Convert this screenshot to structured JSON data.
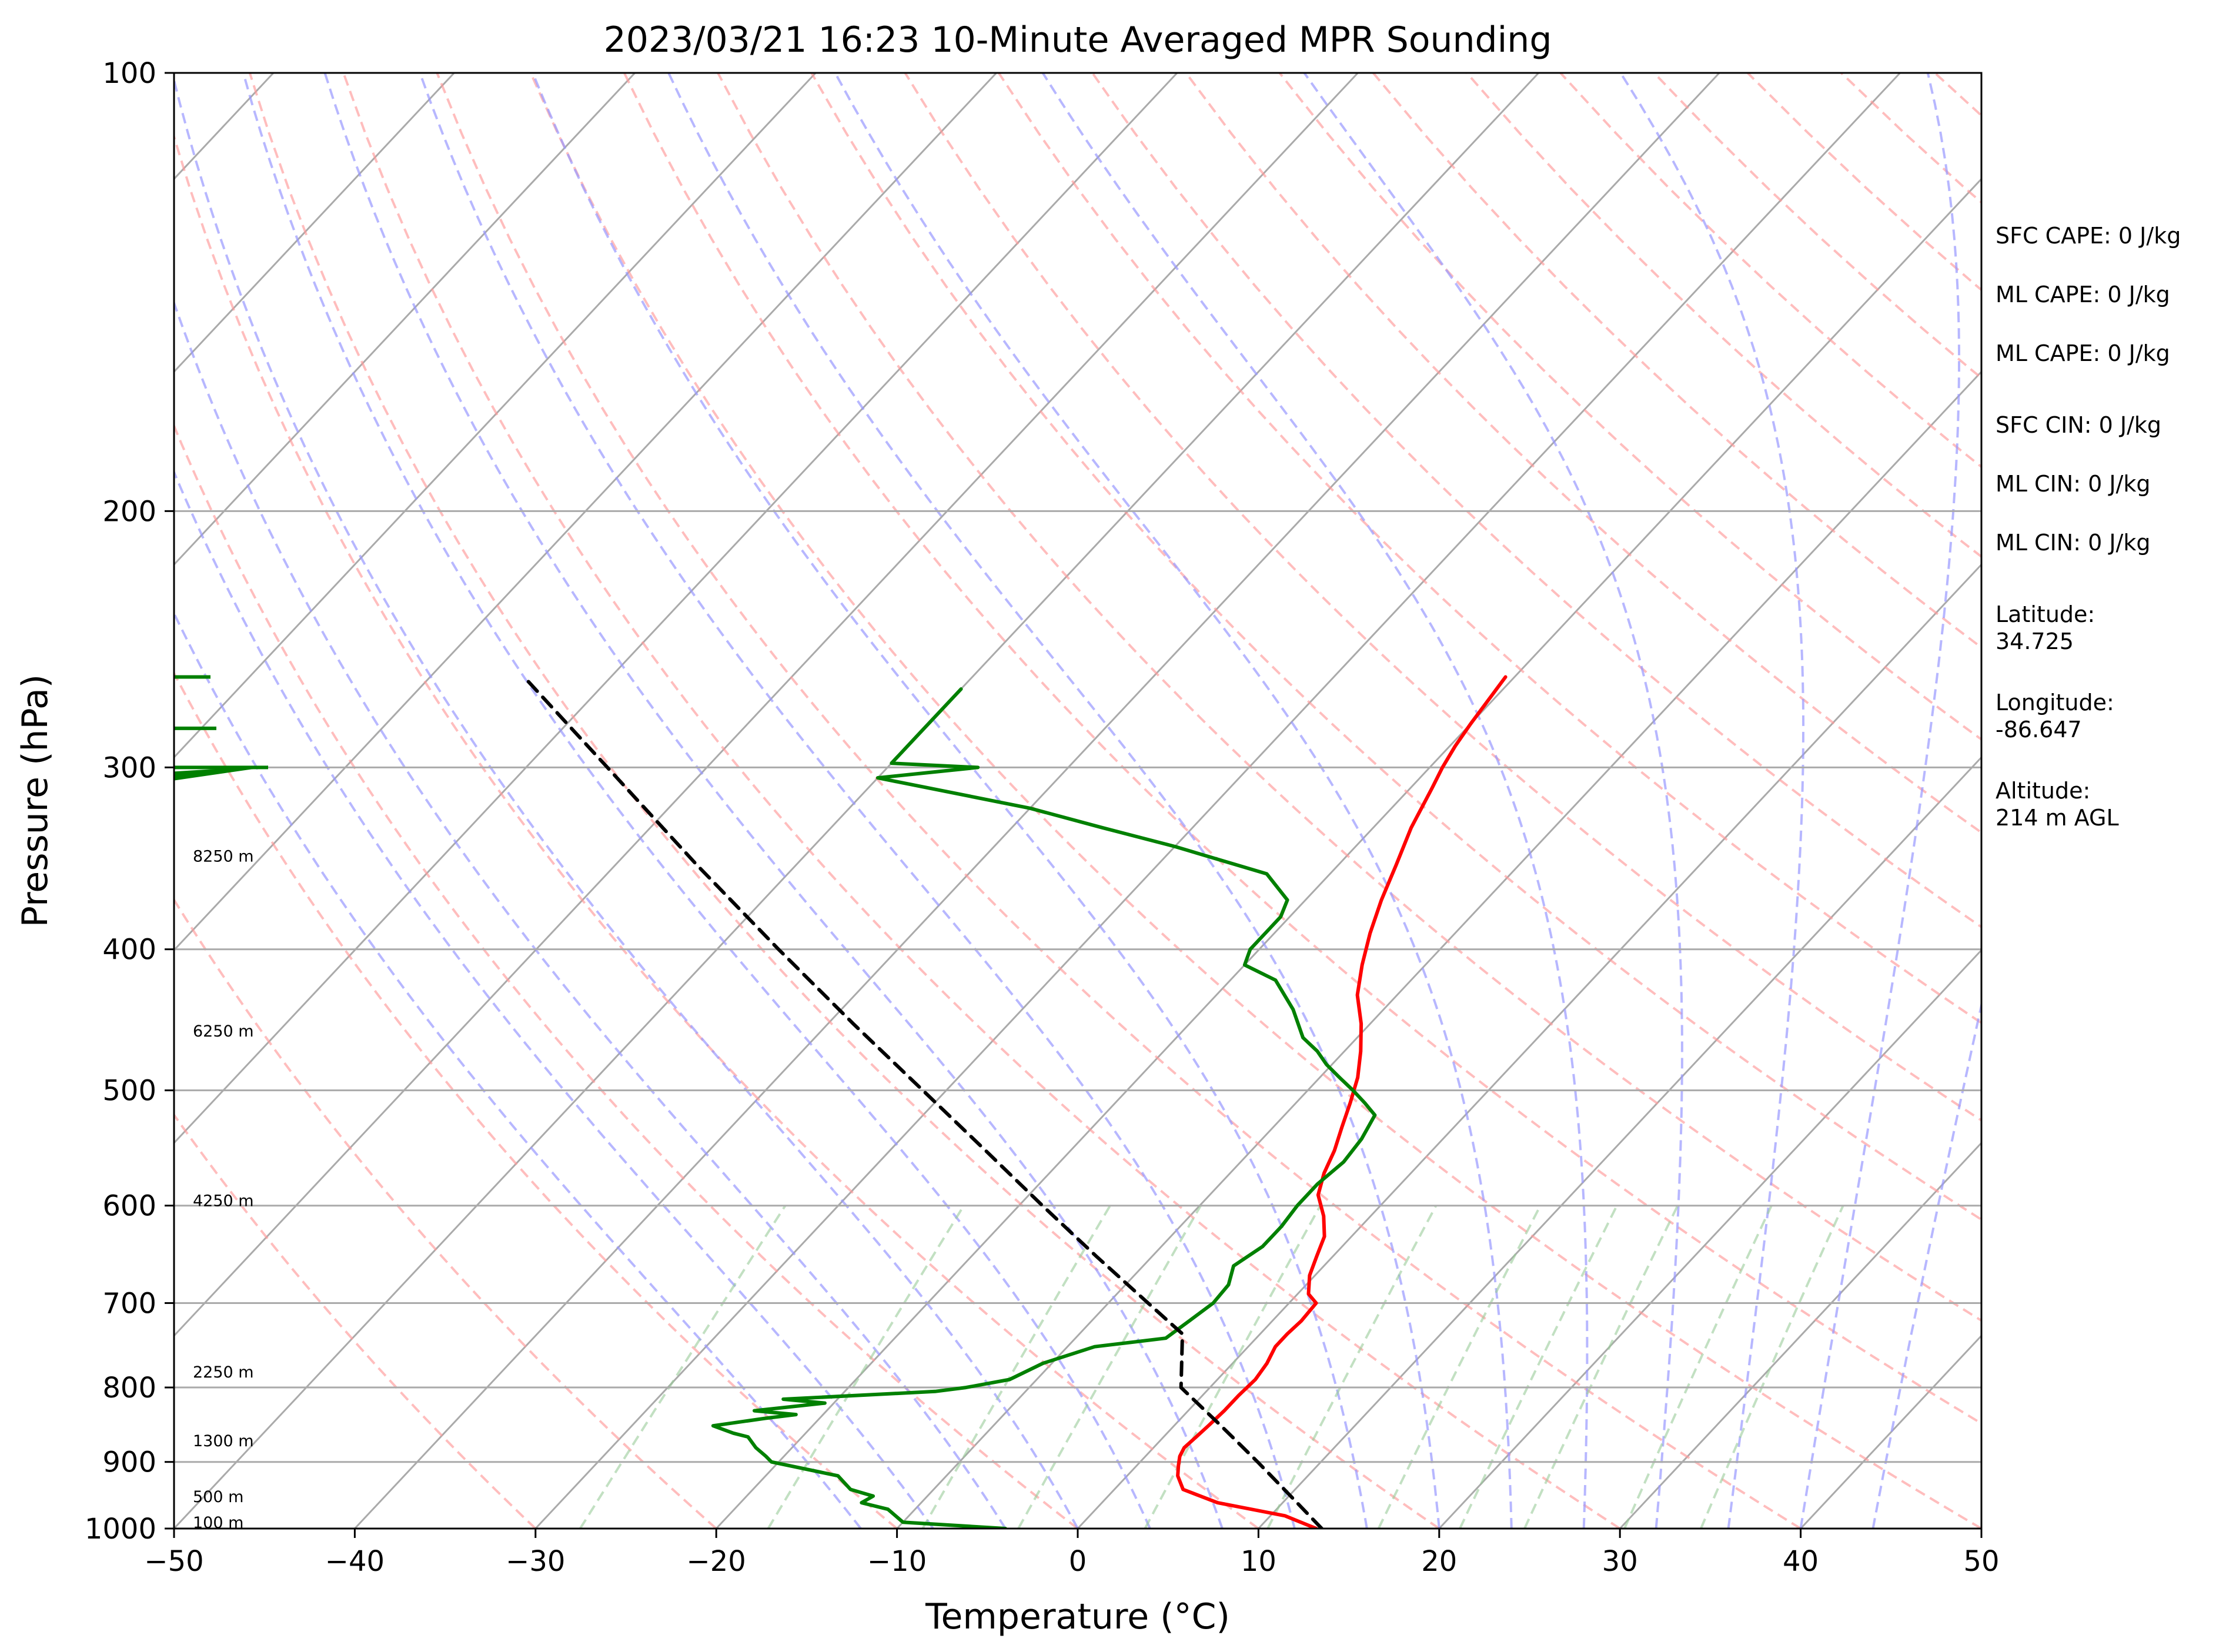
{
  "chart_data": {
    "type": "skew-t",
    "title": "2023/03/21 16:23 10-Minute Averaged MPR Sounding",
    "xlabel": "Temperature (°C)",
    "ylabel": "Pressure (hPa)",
    "xlim": [
      -50,
      50
    ],
    "ylim_hpa": [
      1000,
      100
    ],
    "y_scale": "log",
    "x_ticks": [
      -50,
      -40,
      -30,
      -20,
      -10,
      0,
      10,
      20,
      30,
      40,
      50
    ],
    "x_tick_labels": [
      "−50",
      "−40",
      "−30",
      "−20",
      "−10",
      "0",
      "10",
      "20",
      "30",
      "40",
      "50"
    ],
    "y_ticks": [
      1000,
      900,
      800,
      700,
      600,
      500,
      400,
      300,
      200,
      100
    ],
    "y_tick_labels": [
      "1000",
      "900",
      "800",
      "700",
      "600",
      "500",
      "400",
      "300",
      "200",
      "100"
    ],
    "grid": true,
    "colors": {
      "temperature": "#ff0000",
      "dewpoint": "#008000",
      "parcel": "#000000",
      "isotherm": "#aaaaaa",
      "dry_adiabat": "#ff9999",
      "moist_adiabat": "#9999ff",
      "mixing_ratio": "#99cc99"
    },
    "series": [
      {
        "key": "temperature",
        "p": [
          1000,
          980,
          960,
          940,
          920,
          905,
          892,
          880,
          865,
          850,
          830,
          810,
          790,
          770,
          750,
          735,
          720,
          700,
          690,
          670,
          650,
          630,
          610,
          590,
          570,
          550,
          530,
          510,
          490,
          470,
          450,
          430,
          410,
          390,
          370,
          350,
          330,
          310,
          300,
          290,
          280,
          260
        ],
        "t": [
          13.2,
          10.8,
          6.4,
          3.8,
          2.8,
          2.3,
          1.9,
          1.7,
          1.8,
          1.9,
          2.0,
          2.0,
          2.1,
          1.9,
          1.5,
          1.5,
          1.6,
          1.5,
          0.6,
          -0.3,
          -0.9,
          -1.5,
          -2.6,
          -4.0,
          -4.8,
          -5.4,
          -6.2,
          -7.0,
          -7.9,
          -9.1,
          -10.5,
          -12.2,
          -13.5,
          -14.7,
          -15.8,
          -16.8,
          -17.9,
          -18.8,
          -19.3,
          -19.7,
          -20.0,
          -20.5
        ]
      },
      {
        "key": "dewpoint",
        "p": [
          1000,
          990,
          970,
          960,
          950,
          940,
          920,
          900,
          892,
          880,
          865,
          860,
          850,
          840,
          835,
          830,
          820,
          815,
          805,
          800,
          790,
          770,
          750,
          740,
          720,
          700,
          680,
          660,
          640,
          620,
          600,
          580,
          560,
          540,
          520,
          510,
          500,
          490,
          480,
          470,
          460,
          440,
          420,
          410,
          400,
          390,
          380,
          370,
          355,
          340,
          330,
          320,
          305,
          300,
          298,
          285,
          265
        ],
        "t": [
          -4.0,
          -10.0,
          -11.5,
          -13.3,
          -13.0,
          -14.6,
          -16.0,
          -20.4,
          -21.0,
          -22.0,
          -23.0,
          -24.0,
          -25.5,
          -23.0,
          -21.5,
          -24.0,
          -20.5,
          -23.0,
          -15.0,
          -13.5,
          -11.5,
          -10.5,
          -8.5,
          -5.0,
          -4.6,
          -4.2,
          -4.3,
          -5.0,
          -4.4,
          -4.4,
          -4.6,
          -4.6,
          -4.3,
          -4.5,
          -5.0,
          -6.2,
          -7.5,
          -8.9,
          -10.3,
          -11.5,
          -13.0,
          -15.0,
          -17.5,
          -20.0,
          -20.5,
          -20.5,
          -20.5,
          -21.0,
          -23.5,
          -30.0,
          -35.0,
          -40.0,
          -50.0,
          -45.0,
          -50.0,
          -50.0,
          -50.0
        ]
      },
      {
        "key": "parcel",
        "p": [
          1000,
          950,
          900,
          850,
          800,
          735,
          700,
          650,
          600,
          550,
          500,
          450,
          400,
          350,
          300,
          260
        ],
        "t": [
          13.5,
          10.1,
          6.5,
          2.6,
          -1.6,
          -4.3,
          -7.8,
          -13.1,
          -18.7,
          -24.7,
          -31.3,
          -38.6,
          -46.6,
          -55.5,
          -65.5,
          -74.8
        ]
      }
    ],
    "height_labels": [
      "100 m",
      "500 m",
      "1300 m",
      "2250 m",
      "4250 m",
      "6250 m",
      "8250 m"
    ],
    "height_label_pressures": [
      990,
      950,
      870,
      780,
      595,
      455,
      345
    ],
    "wind_barbs_hpa": [
      260,
      282,
      300,
      306
    ]
  },
  "stats": [
    {
      "lines": [
        "SFC CAPE: 0 J/kg"
      ]
    },
    {
      "lines": [
        "ML CAPE: 0 J/kg"
      ]
    },
    {
      "lines": [
        "ML CAPE: 0 J/kg"
      ]
    },
    {
      "lines": [
        "SFC CIN: 0 J/kg"
      ]
    },
    {
      "lines": [
        "ML CIN: 0 J/kg"
      ]
    },
    {
      "lines": [
        "ML CIN: 0 J/kg"
      ]
    },
    {
      "lines": [
        "Latitude:",
        "34.725"
      ]
    },
    {
      "lines": [
        "Longitude:",
        "-86.647"
      ]
    },
    {
      "lines": [
        "Altitude:",
        "214 m AGL"
      ]
    }
  ]
}
